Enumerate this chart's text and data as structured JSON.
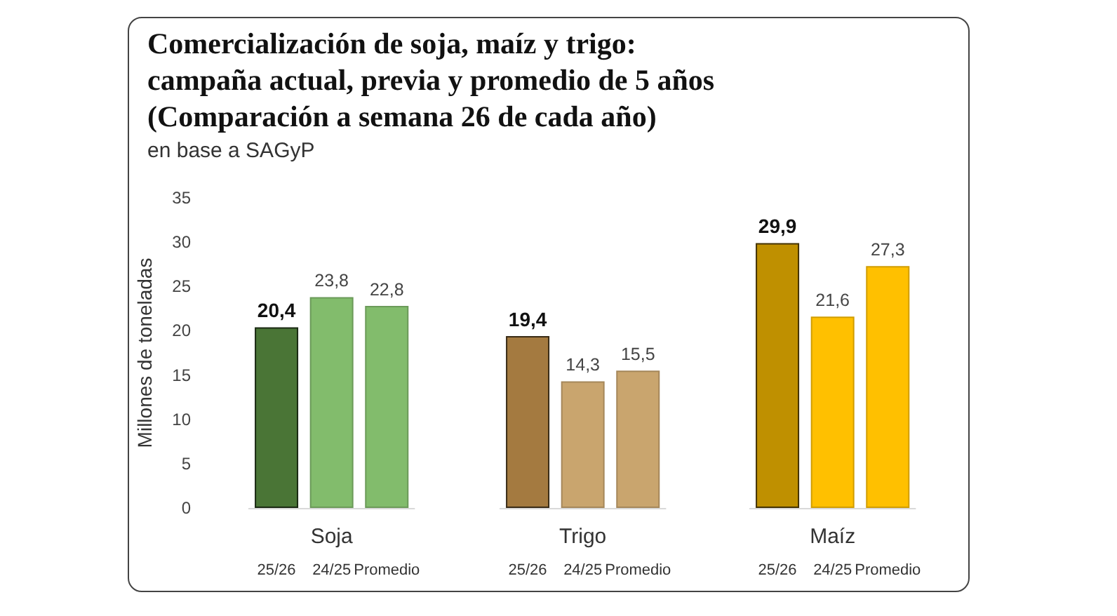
{
  "chart_data": [
    {
      "type": "bar",
      "title": "Comercialización de soja, maíz y trigo:\ncampaña actual, previa y promedio de 5 años\n(Comparación a semana 26 de cada año)",
      "subtitle": "en base a SAGyP",
      "ylabel": "Millones de toneladas",
      "xlabel": "Soja",
      "categories": [
        "25/26",
        "24/25",
        "Promedio"
      ],
      "colors": [
        "#4a7536",
        "#82bc6c",
        "#82bc6c"
      ],
      "values": [
        20.4,
        23.8,
        22.8
      ],
      "value_labels": [
        "20,4",
        "23,8",
        "22,8"
      ],
      "ylim": [
        0,
        35
      ],
      "yticks": [
        0,
        5,
        10,
        15,
        20,
        25,
        30,
        35
      ],
      "grid": false
    },
    {
      "type": "bar",
      "xlabel": "Trigo",
      "categories": [
        "25/26",
        "24/25",
        "Promedio"
      ],
      "colors": [
        "#a47a40",
        "#c9a56e",
        "#c9a56e"
      ],
      "values": [
        19.4,
        14.3,
        15.5
      ],
      "value_labels": [
        "19,4",
        "14,3",
        "15,5"
      ],
      "ylim": [
        0,
        35
      ],
      "tick_labels": "x",
      "grid": false
    },
    {
      "type": "bar",
      "xlabel": "Maíz",
      "categories": [
        "25/26",
        "24/25",
        "Promedio"
      ],
      "colors": [
        "#bf9000",
        "#ffc000",
        "#ffc000"
      ],
      "values": [
        29.9,
        21.6,
        27.3
      ],
      "value_labels": [
        "29,9",
        "21,6",
        "27,3"
      ],
      "ylim": [
        0,
        35
      ],
      "tick_labels": "x",
      "grid": false
    }
  ]
}
